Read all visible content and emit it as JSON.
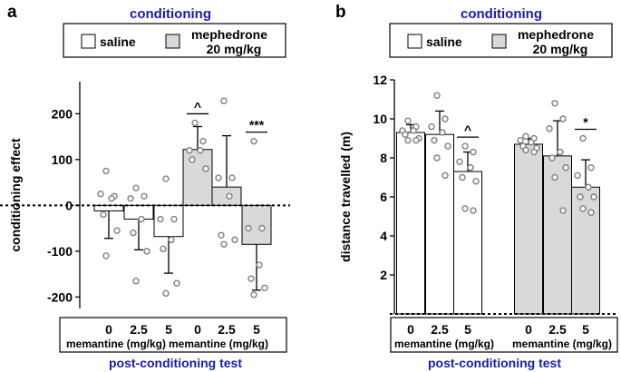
{
  "panels": [
    {
      "letter": "a",
      "title": "conditioning",
      "footer": "post-conditioning test",
      "legend": {
        "saline": "saline",
        "drug_line1": "mephedrone",
        "drug_line2": "20 mg/kg"
      },
      "dose_ticks": [
        "0",
        "2.5",
        "5"
      ],
      "dose_label": "memantine (mg/kg)"
    },
    {
      "letter": "b",
      "title": "conditioning",
      "footer": "post-conditioning test",
      "legend": {
        "saline": "saline",
        "drug_line1": "mephedrone",
        "drug_line2": "20 mg/kg"
      },
      "dose_ticks": [
        "0",
        "2.5",
        "5"
      ],
      "dose_label": "memantine (mg/kg)"
    }
  ],
  "colors": {
    "saline_fill": "#ffffff",
    "drug_fill": "#d9d9d9",
    "title": "#1c1ca6",
    "point_edge": "#7f7f7f"
  },
  "chart_data": [
    {
      "type": "bar",
      "ylabel": "conditioning effect",
      "ylim": [
        -225,
        270
      ],
      "yticks": [
        -200,
        -100,
        0,
        100,
        200
      ],
      "zero_line": "dashed",
      "groups": [
        {
          "treatment": "saline",
          "bars": [
            {
              "dose": "0",
              "mean": -12,
              "error": 60,
              "sig": "",
              "points": [
                75,
                20,
                25,
                15,
                -20,
                -55,
                -110
              ]
            },
            {
              "dose": "2.5",
              "mean": -30,
              "error": 67,
              "sig": "",
              "points": [
                38,
                20,
                15,
                -30,
                -60,
                -100,
                -165
              ]
            },
            {
              "dose": "5",
              "mean": -68,
              "error": 80,
              "sig": "",
              "points": [
                58,
                -30,
                -30,
                -75,
                -95,
                -170,
                -192
              ]
            }
          ]
        },
        {
          "treatment": "mephedrone 20 mg/kg",
          "bars": [
            {
              "dose": "0",
              "mean": 122,
              "error": 50,
              "sig": "^",
              "points": [
                180,
                140,
                120,
                120,
                100,
                80
              ]
            },
            {
              "dose": "2.5",
              "mean": 40,
              "error": 112,
              "sig": "",
              "points": [
                228,
                60,
                60,
                20,
                -65,
                -75,
                -85
              ]
            },
            {
              "dose": "5",
              "mean": -85,
              "error": 100,
              "sig": "***",
              "points": [
                140,
                -50,
                -50,
                -130,
                -160,
                -180,
                -195
              ]
            }
          ]
        }
      ]
    },
    {
      "type": "bar",
      "ylabel": "distance travelled (m)",
      "ylim": [
        0,
        12
      ],
      "yticks": [
        2,
        4,
        6,
        8,
        10,
        12
      ],
      "zero_line": "dashed",
      "groups": [
        {
          "treatment": "saline",
          "bars": [
            {
              "dose": "0",
              "mean": 9.3,
              "error": 0.4,
              "sig": "",
              "points": [
                9.9,
                9.6,
                9.4,
                9.4,
                9.2,
                9.0,
                8.9,
                8.9
              ]
            },
            {
              "dose": "2.5",
              "mean": 9.2,
              "error": 1.2,
              "sig": "",
              "points": [
                11.2,
                10.0,
                9.6,
                9.3,
                8.9,
                8.6,
                8.0,
                7.1
              ]
            },
            {
              "dose": "5",
              "mean": 7.3,
              "error": 1.0,
              "sig": "^",
              "points": [
                8.6,
                8.3,
                7.8,
                7.5,
                7.0,
                6.8,
                5.4,
                5.3
              ]
            }
          ]
        },
        {
          "treatment": "mephedrone 20 mg/kg",
          "bars": [
            {
              "dose": "0",
              "mean": 8.7,
              "error": 0.3,
              "sig": "",
              "points": [
                9.1,
                9.0,
                8.9,
                8.8,
                8.6,
                8.5,
                8.4,
                8.3
              ]
            },
            {
              "dose": "2.5",
              "mean": 8.1,
              "error": 1.8,
              "sig": "",
              "points": [
                10.8,
                10.0,
                9.5,
                8.3,
                8.0,
                7.5,
                7.0,
                5.3
              ]
            },
            {
              "dose": "5",
              "mean": 6.5,
              "error": 1.4,
              "sig": "*",
              "points": [
                9.0,
                7.5,
                7.1,
                6.5,
                6.0,
                6.0,
                5.4,
                5.2
              ]
            }
          ]
        }
      ]
    }
  ]
}
